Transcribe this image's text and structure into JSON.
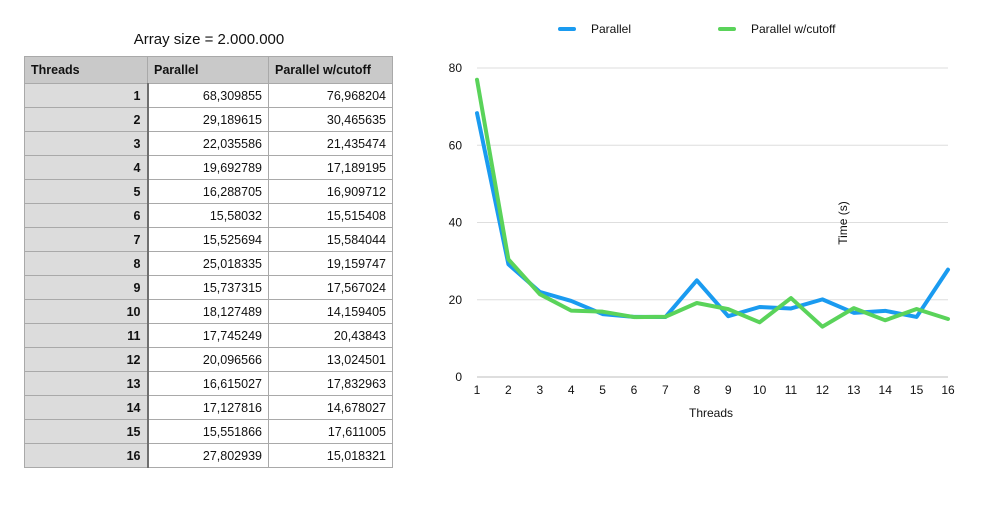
{
  "table": {
    "title": "Array size = 2.000.000",
    "headers": [
      "Threads",
      "Parallel",
      "Parallel w/cutoff"
    ],
    "rows": [
      [
        "1",
        "68,309855",
        "76,968204"
      ],
      [
        "2",
        "29,189615",
        "30,465635"
      ],
      [
        "3",
        "22,035586",
        "21,435474"
      ],
      [
        "4",
        "19,692789",
        "17,189195"
      ],
      [
        "5",
        "16,288705",
        "16,909712"
      ],
      [
        "6",
        "15,58032",
        "15,515408"
      ],
      [
        "7",
        "15,525694",
        "15,584044"
      ],
      [
        "8",
        "25,018335",
        "19,159747"
      ],
      [
        "9",
        "15,737315",
        "17,567024"
      ],
      [
        "10",
        "18,127489",
        "14,159405"
      ],
      [
        "11",
        "17,745249",
        "20,43843"
      ],
      [
        "12",
        "20,096566",
        "13,024501"
      ],
      [
        "13",
        "16,615027",
        "17,832963"
      ],
      [
        "14",
        "17,127816",
        "14,678027"
      ],
      [
        "15",
        "15,551866",
        "17,611005"
      ],
      [
        "16",
        "27,802939",
        "15,018321"
      ]
    ]
  },
  "chart_data": {
    "type": "line",
    "title": "",
    "xlabel": "Threads",
    "ylabel": "Time (s)",
    "x": [
      1,
      2,
      3,
      4,
      5,
      6,
      7,
      8,
      9,
      10,
      11,
      12,
      13,
      14,
      15,
      16
    ],
    "ylim": [
      0,
      80
    ],
    "yticks": [
      0,
      20,
      40,
      60,
      80
    ],
    "grid": true,
    "legend_position": "top",
    "series": [
      {
        "name": "Parallel",
        "color": "#1a9bf0",
        "values": [
          68.309855,
          29.189615,
          22.035586,
          19.692789,
          16.288705,
          15.58032,
          15.525694,
          25.018335,
          15.737315,
          18.127489,
          17.745249,
          20.096566,
          16.615027,
          17.127816,
          15.551866,
          27.802939
        ]
      },
      {
        "name": "Parallel w/cutoff",
        "color": "#5ad35a",
        "values": [
          76.968204,
          30.465635,
          21.435474,
          17.189195,
          16.909712,
          15.515408,
          15.584044,
          19.159747,
          17.567024,
          14.159405,
          20.43843,
          13.024501,
          17.832963,
          14.678027,
          17.611005,
          15.018321
        ]
      }
    ]
  }
}
